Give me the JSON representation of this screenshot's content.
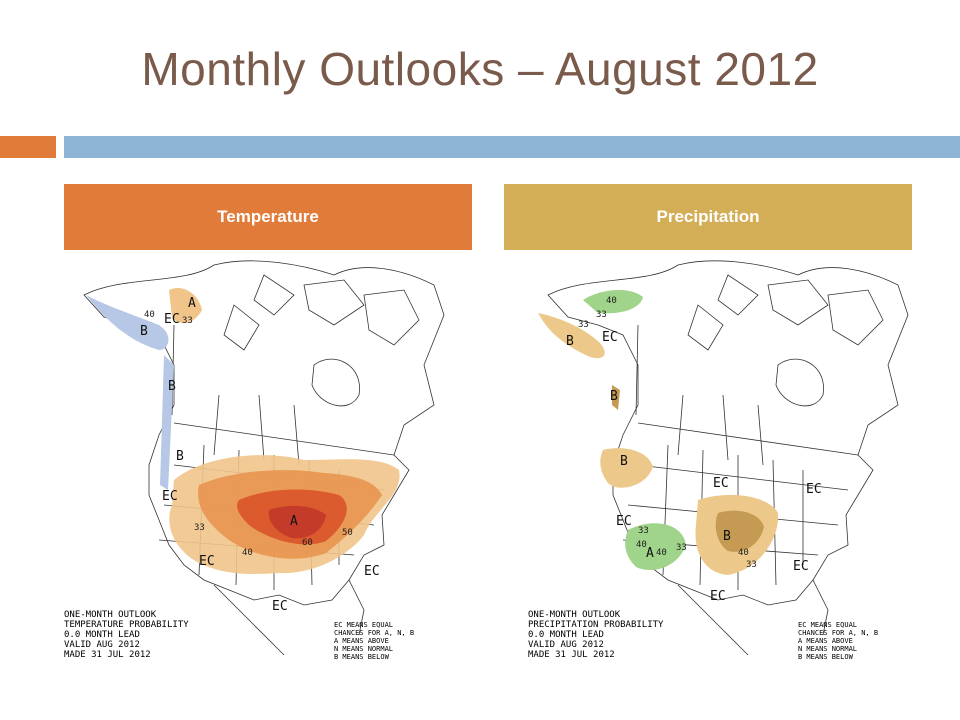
{
  "title": "Monthly Outlooks – August 2012",
  "columns": {
    "temperature": "Temperature",
    "precipitation": "Precipitation"
  },
  "temperature_map": {
    "caption": [
      "ONE-MONTH OUTLOOK",
      "TEMPERATURE PROBABILITY",
      "0.0 MONTH LEAD",
      "VALID AUG 2012",
      "MADE 31 JUL 2012"
    ],
    "legend": [
      "EC MEANS EQUAL",
      "CHANCES FOR A, N, B",
      "A MEANS ABOVE",
      "N MEANS NORMAL",
      "B MEANS BELOW"
    ],
    "labels": {
      "a": "A",
      "b": "B",
      "ec": "EC",
      "v33": "33",
      "v40": "40",
      "v50": "50",
      "v60": "60"
    },
    "colors": {
      "above_light": "#f1c48a",
      "above_mid": "#e8954f",
      "above_dark": "#d9532a",
      "above_max": "#c1372a",
      "below": "#b6c8e6"
    }
  },
  "precipitation_map": {
    "caption": [
      "ONE-MONTH OUTLOOK",
      "PRECIPITATION PROBABILITY",
      "0.0 MONTH LEAD",
      "VALID AUG 2012",
      "MADE 31 JUL 2012"
    ],
    "legend": [
      "EC MEANS EQUAL",
      "CHANCES FOR A, N, B",
      "A MEANS ABOVE",
      "N MEANS NORMAL",
      "B MEANS BELOW"
    ],
    "labels": {
      "a": "A",
      "b": "B",
      "ec": "EC",
      "v33": "33",
      "v40": "40"
    },
    "colors": {
      "below_light": "#ecc98b",
      "below_dark": "#c59b53",
      "above": "#9fd48a"
    }
  }
}
